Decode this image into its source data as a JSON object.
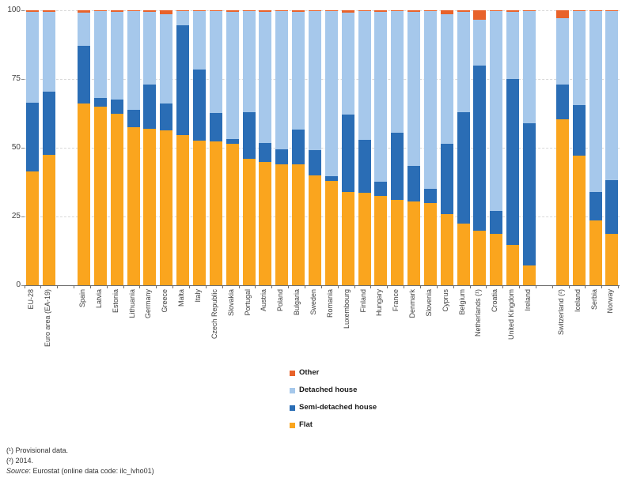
{
  "chart_data": {
    "type": "bar",
    "stacked": true,
    "unit": "% of population",
    "title": "",
    "xlabel": "",
    "ylabel": "",
    "grid": "horizontal dashed",
    "legend_position": "bottom-center",
    "y_axis": {
      "min": 0,
      "max": 100,
      "ticks": [
        0,
        25,
        50,
        75,
        100
      ]
    },
    "categories": [
      "EU-28",
      "Euro area (EA-19)",
      "Spain",
      "Latvia",
      "Estonia",
      "Lithuania",
      "Germany",
      "Greece",
      "Malta",
      "Italy",
      "Czech Republic",
      "Slovakia",
      "Portugal",
      "Austria",
      "Poland",
      "Bulgaria",
      "Sweden",
      "Romania",
      "Luxembourg",
      "Finland",
      "Hungary",
      "France",
      "Denmark",
      "Slovenia",
      "Cyprus",
      "Belgium",
      "Netherlands (¹)",
      "Croatia",
      "United Kingdom",
      "Ireland",
      "Switzerland (²)",
      "Iceland",
      "Serbia",
      "Norway"
    ],
    "gap_after_indices": [
      1,
      29
    ],
    "series": [
      {
        "name": "Flat",
        "color": "#FAA51E",
        "values": [
          41.5,
          47.5,
          66.0,
          65.0,
          62.5,
          57.5,
          57.0,
          56.3,
          54.5,
          52.5,
          52.4,
          51.3,
          46.0,
          44.7,
          44.0,
          44.0,
          40.0,
          38.0,
          34.0,
          33.5,
          32.5,
          31.0,
          30.5,
          30.0,
          26.0,
          22.4,
          19.7,
          18.7,
          14.8,
          7.2,
          60.3,
          47.0,
          23.5,
          18.7
        ]
      },
      {
        "name": "Semi-detached house",
        "color": "#2A6DB5",
        "values": [
          24.8,
          22.8,
          21.0,
          3.0,
          5.0,
          6.3,
          16.0,
          9.8,
          40.0,
          26.0,
          10.2,
          2.0,
          17.0,
          7.0,
          5.5,
          12.5,
          9.2,
          1.7,
          28.2,
          19.3,
          5.2,
          24.5,
          13.0,
          5.0,
          25.5,
          40.6,
          60.3,
          8.2,
          60.1,
          51.8,
          12.8,
          18.5,
          10.4,
          19.5
        ]
      },
      {
        "name": "Detached house",
        "color": "#A6C8EB",
        "values": [
          33.1,
          29.1,
          12.2,
          31.7,
          31.8,
          35.8,
          26.5,
          32.4,
          5.3,
          21.2,
          37.2,
          46.2,
          36.6,
          47.6,
          50.2,
          42.8,
          50.5,
          60.1,
          37.0,
          46.8,
          61.6,
          44.3,
          55.9,
          64.7,
          47.0,
          36.4,
          16.5,
          72.9,
          24.4,
          40.8,
          23.9,
          34.1,
          65.9,
          61.5
        ]
      },
      {
        "name": "Other",
        "color": "#E8622A",
        "values": [
          0.6,
          0.6,
          0.8,
          0.3,
          0.7,
          0.4,
          0.5,
          1.5,
          0.2,
          0.3,
          0.2,
          0.5,
          0.4,
          0.7,
          0.3,
          0.7,
          0.3,
          0.2,
          0.8,
          0.4,
          0.7,
          0.2,
          0.6,
          0.3,
          1.5,
          0.6,
          3.5,
          0.2,
          0.7,
          0.2,
          3.0,
          0.4,
          0.2,
          0.3
        ]
      }
    ]
  },
  "legend": {
    "items": [
      {
        "label": "Other",
        "color": "#E8622A"
      },
      {
        "label": "Detached house",
        "color": "#A6C8EB"
      },
      {
        "label": "Semi-detached house",
        "color": "#2A6DB5"
      },
      {
        "label": "Flat",
        "color": "#FAA51E"
      }
    ]
  },
  "footer": {
    "note1": "(¹) Provisional data.",
    "note2": "(²) 2014.",
    "source_label": "Source",
    "source_text": ": Eurostat (online data code: ilc_lvho01)"
  }
}
